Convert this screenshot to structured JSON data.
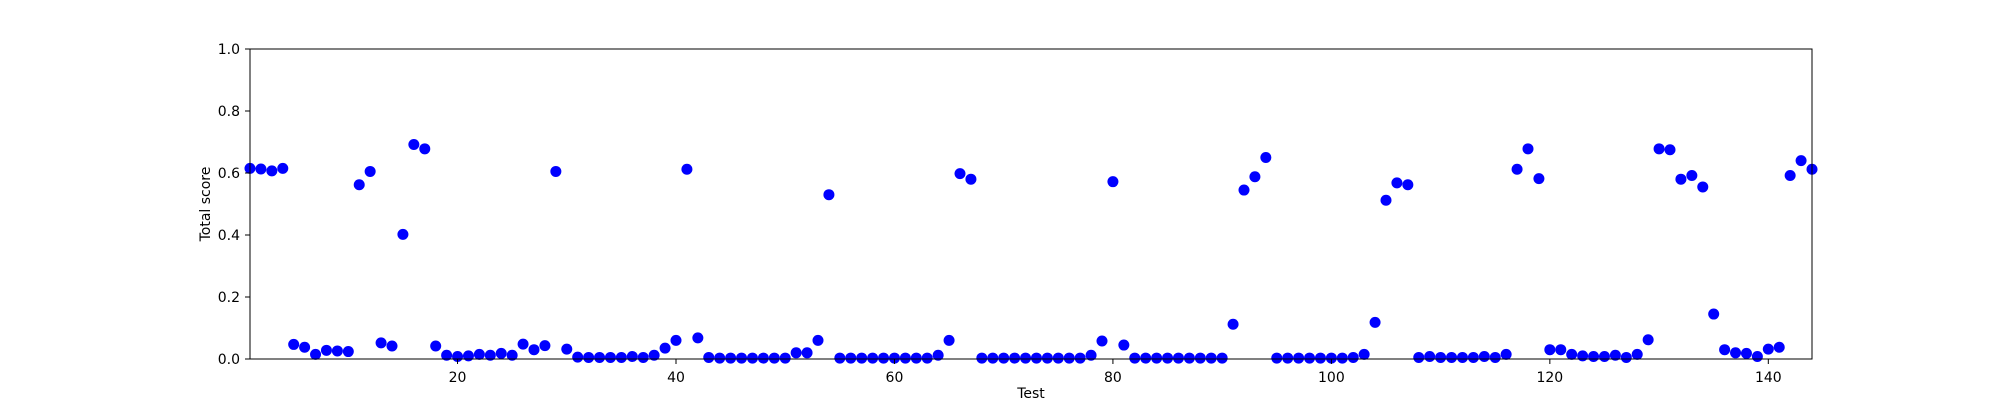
{
  "chart_data": {
    "type": "scatter",
    "xlabel": "Test",
    "ylabel": "Total score",
    "xlim": [
      1,
      144
    ],
    "ylim": [
      0.0,
      1.0
    ],
    "x_ticks": [
      20,
      40,
      60,
      80,
      100,
      120,
      140
    ],
    "x_tick_labels": [
      "20",
      "40",
      "60",
      "80",
      "100",
      "120",
      "140"
    ],
    "y_ticks": [
      0.0,
      0.2,
      0.4,
      0.6,
      0.8,
      1.0
    ],
    "y_tick_labels": [
      "0.0",
      "0.2",
      "0.4",
      "0.6",
      "0.8",
      "1.0"
    ],
    "grid": false,
    "legend": "none",
    "marker_color": "#0000ff",
    "series": [
      {
        "x": [
          1,
          2,
          3,
          4,
          5,
          6,
          7,
          8,
          9,
          10,
          11,
          12,
          13,
          14,
          15,
          16,
          17,
          18,
          19,
          20,
          21,
          22,
          23,
          24,
          25,
          26,
          27,
          28,
          29,
          30,
          31,
          32,
          33,
          34,
          35,
          36,
          37,
          38,
          39,
          40,
          41,
          42,
          43,
          44,
          45,
          46,
          47,
          48,
          49,
          50,
          51,
          52,
          53,
          54,
          55,
          56,
          57,
          58,
          59,
          60,
          61,
          62,
          63,
          64,
          65,
          66,
          67,
          68,
          69,
          70,
          71,
          72,
          73,
          74,
          75,
          76,
          77,
          78,
          79,
          80,
          81,
          82,
          83,
          84,
          85,
          86,
          87,
          88,
          89,
          90,
          91,
          92,
          93,
          94,
          95,
          96,
          97,
          98,
          99,
          100,
          101,
          102,
          103,
          104,
          105,
          106,
          107,
          108,
          109,
          110,
          111,
          112,
          113,
          114,
          115,
          116,
          117,
          118,
          119,
          120,
          121,
          122,
          123,
          124,
          125,
          126,
          127,
          128,
          129,
          130,
          131,
          132,
          133,
          134,
          135,
          136,
          137,
          138,
          139,
          140,
          141,
          142,
          143,
          144
        ],
        "y": [
          0.615,
          0.613,
          0.607,
          0.615,
          0.047,
          0.038,
          0.015,
          0.028,
          0.026,
          0.024,
          0.562,
          0.605,
          0.052,
          0.042,
          0.402,
          0.692,
          0.678,
          0.042,
          0.012,
          0.008,
          0.01,
          0.015,
          0.012,
          0.018,
          0.012,
          0.048,
          0.03,
          0.043,
          0.605,
          0.032,
          0.006,
          0.005,
          0.005,
          0.005,
          0.005,
          0.008,
          0.005,
          0.012,
          0.035,
          0.06,
          0.612,
          0.068,
          0.005,
          0.003,
          0.003,
          0.003,
          0.003,
          0.003,
          0.003,
          0.003,
          0.02,
          0.02,
          0.06,
          0.53,
          0.003,
          0.003,
          0.003,
          0.003,
          0.003,
          0.003,
          0.003,
          0.003,
          0.003,
          0.012,
          0.06,
          0.598,
          0.58,
          0.003,
          0.003,
          0.003,
          0.003,
          0.003,
          0.003,
          0.003,
          0.003,
          0.003,
          0.003,
          0.012,
          0.058,
          0.572,
          0.045,
          0.003,
          0.003,
          0.003,
          0.003,
          0.003,
          0.003,
          0.003,
          0.003,
          0.003,
          0.112,
          0.545,
          0.588,
          0.65,
          0.003,
          0.003,
          0.003,
          0.003,
          0.003,
          0.003,
          0.003,
          0.005,
          0.015,
          0.118,
          0.512,
          0.568,
          0.562,
          0.005,
          0.008,
          0.005,
          0.005,
          0.005,
          0.005,
          0.008,
          0.005,
          0.015,
          0.612,
          0.678,
          0.582,
          0.03,
          0.03,
          0.015,
          0.01,
          0.008,
          0.008,
          0.012,
          0.005,
          0.015,
          0.062,
          0.678,
          0.675,
          0.58,
          0.592,
          0.555,
          0.145,
          0.03,
          0.02,
          0.018,
          0.008,
          0.032,
          0.038,
          0.592,
          0.64,
          0.612
        ]
      }
    ]
  }
}
